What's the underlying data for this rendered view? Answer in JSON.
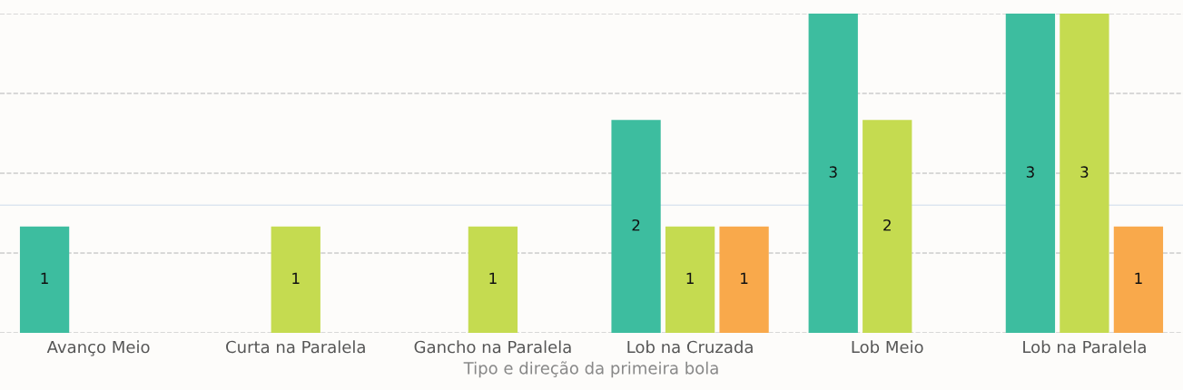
{
  "chart_data": {
    "type": "bar",
    "xlabel": "Tipo e direção da primeira bola",
    "categories": [
      "Avanço Meio",
      "Curta na Paralela",
      "Gancho na Paralela",
      "Lob na Cruzada",
      "Lob Meio",
      "Lob na Paralela"
    ],
    "series": [
      {
        "color": "#3dbd9f",
        "values": [
          1,
          null,
          null,
          2,
          3,
          3
        ]
      },
      {
        "color": "#c5db50",
        "values": [
          null,
          1,
          1,
          1,
          2,
          3
        ]
      },
      {
        "color": "#f9a94b",
        "values": [
          null,
          null,
          null,
          1,
          null,
          1
        ]
      }
    ],
    "data_labels": true,
    "ylim": [
      0,
      3
    ],
    "yticks": [
      {
        "value": 0,
        "label": null
      },
      {
        "value": 0.75,
        "label": null
      },
      {
        "value": 1.5,
        "label": null
      },
      {
        "value": 2.25,
        "label": null
      },
      {
        "value": 3,
        "label": null
      }
    ],
    "tick_labels": "x",
    "grid": "y",
    "ref_lines": [
      {
        "axis": "y",
        "value": 1.2,
        "color": "#dde6f0",
        "line_style": "solid"
      }
    ]
  }
}
